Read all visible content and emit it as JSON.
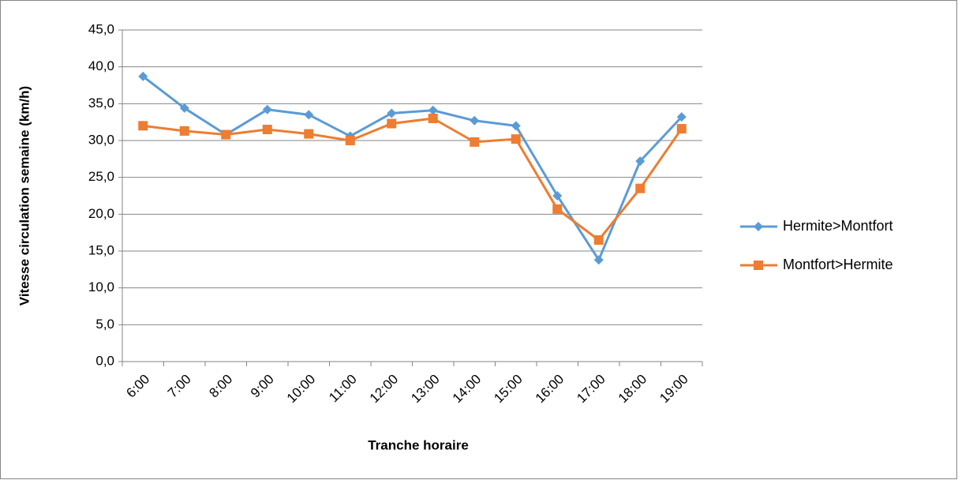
{
  "chart_data": {
    "type": "line",
    "x_label": "Tranche horaire",
    "y_label": "Vitesse circulation semaine (km/h)",
    "categories": [
      "6:00",
      "7:00",
      "8:00",
      "9:00",
      "10:00",
      "11:00",
      "12:00",
      "13:00",
      "14:00",
      "15:00",
      "16:00",
      "17:00",
      "18:00",
      "19:00"
    ],
    "series": [
      {
        "name": "Hermite>Montfort",
        "color": "#5b9bd5",
        "marker": "diamond",
        "values": [
          38.7,
          34.4,
          30.8,
          34.2,
          33.5,
          30.6,
          33.7,
          34.1,
          32.7,
          32.0,
          22.5,
          13.8,
          27.2,
          33.2
        ]
      },
      {
        "name": "Montfort>Hermite",
        "color": "#ed7d31",
        "marker": "square",
        "values": [
          32.0,
          31.3,
          30.8,
          31.5,
          30.9,
          30.0,
          32.3,
          33.0,
          29.8,
          30.2,
          20.7,
          16.5,
          23.5,
          31.6
        ]
      }
    ],
    "ylim": [
      0,
      45
    ],
    "yticks": [
      {
        "value": 0,
        "label": "0,0"
      },
      {
        "value": 5,
        "label": "5,0"
      },
      {
        "value": 10,
        "label": "10,0"
      },
      {
        "value": 15,
        "label": "15,0"
      },
      {
        "value": 20,
        "label": "20,0"
      },
      {
        "value": 25,
        "label": "25,0"
      },
      {
        "value": 30,
        "label": "30,0"
      },
      {
        "value": 35,
        "label": "35,0"
      },
      {
        "value": 40,
        "label": "40,0"
      },
      {
        "value": 45,
        "label": "45,0"
      }
    ],
    "grid": true,
    "legend": "right"
  }
}
